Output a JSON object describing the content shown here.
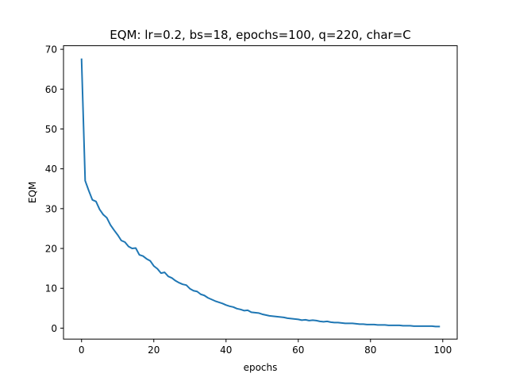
{
  "chart_data": {
    "type": "line",
    "title": "EQM: lr=0.2, bs=18, epochs=100, q=220, char=C",
    "xlabel": "epochs",
    "ylabel": "EQM",
    "xlim": [
      -5,
      104
    ],
    "ylim": [
      -2.75,
      70.9
    ],
    "xticks": [
      0,
      20,
      40,
      60,
      80,
      100
    ],
    "yticks": [
      0,
      10,
      20,
      30,
      40,
      50,
      60,
      70
    ],
    "grid": false,
    "color": "#1f77b4",
    "series": [
      {
        "x": [
          0,
          1,
          2,
          3,
          4,
          5,
          6,
          7,
          8,
          9,
          10,
          11,
          12,
          13,
          14,
          15,
          16,
          17,
          18,
          19,
          20,
          21,
          22,
          23,
          24,
          25,
          26,
          27,
          28,
          29,
          30,
          31,
          32,
          33,
          34,
          35,
          36,
          37,
          38,
          39,
          40,
          41,
          42,
          43,
          44,
          45,
          46,
          47,
          48,
          49,
          50,
          51,
          52,
          53,
          54,
          55,
          56,
          57,
          58,
          59,
          60,
          61,
          62,
          63,
          64,
          65,
          66,
          67,
          68,
          69,
          70,
          71,
          72,
          73,
          74,
          75,
          76,
          77,
          78,
          79,
          80,
          81,
          82,
          83,
          84,
          85,
          86,
          87,
          88,
          89,
          90,
          91,
          92,
          93,
          94,
          95,
          96,
          97,
          98,
          99
        ],
        "values": [
          67.5,
          37.0,
          34.5,
          32.2,
          31.8,
          29.8,
          28.5,
          27.7,
          25.9,
          24.6,
          23.4,
          22.0,
          21.6,
          20.5,
          20.0,
          20.1,
          18.4,
          18.1,
          17.4,
          16.9,
          15.6,
          14.9,
          13.8,
          14.0,
          13.0,
          12.6,
          11.9,
          11.4,
          11.0,
          10.8,
          9.9,
          9.4,
          9.2,
          8.5,
          8.2,
          7.6,
          7.2,
          6.8,
          6.5,
          6.2,
          5.8,
          5.5,
          5.3,
          4.9,
          4.7,
          4.4,
          4.5,
          4.0,
          3.9,
          3.8,
          3.5,
          3.3,
          3.1,
          3.0,
          2.9,
          2.8,
          2.7,
          2.5,
          2.4,
          2.3,
          2.2,
          2.0,
          2.1,
          1.9,
          2.0,
          1.9,
          1.7,
          1.6,
          1.7,
          1.5,
          1.4,
          1.4,
          1.3,
          1.2,
          1.2,
          1.2,
          1.1,
          1.0,
          1.0,
          0.9,
          0.9,
          0.9,
          0.8,
          0.8,
          0.8,
          0.7,
          0.7,
          0.7,
          0.7,
          0.6,
          0.6,
          0.6,
          0.5,
          0.5,
          0.5,
          0.5,
          0.5,
          0.5,
          0.4,
          0.4
        ]
      }
    ]
  }
}
